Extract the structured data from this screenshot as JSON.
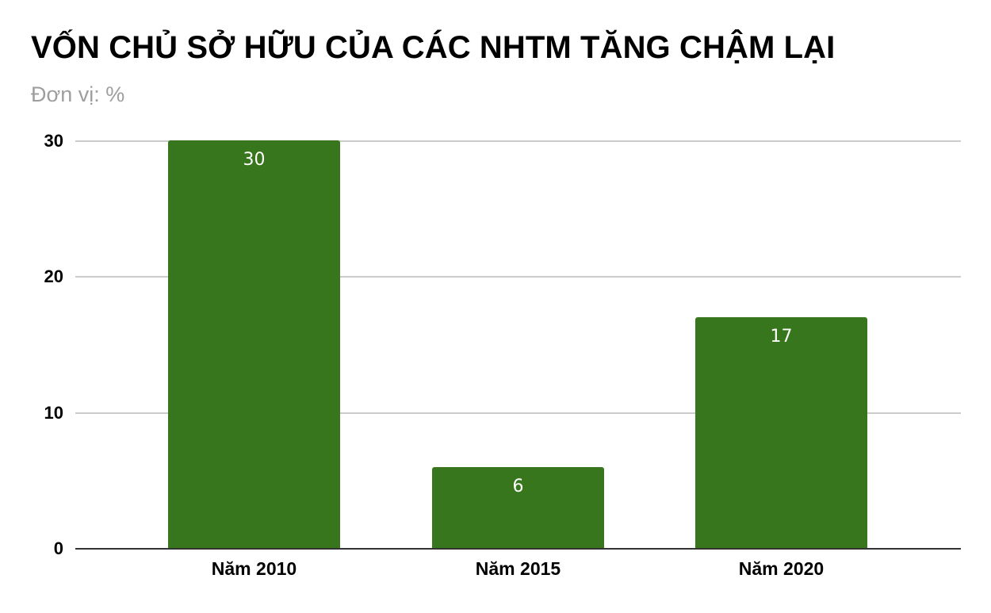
{
  "chart_data": {
    "type": "bar",
    "title": "VỐN CHỦ SỞ HỮU CỦA CÁC NHTM TĂNG CHẬM LẠI",
    "subtitle": "Đơn vị: %",
    "xlabel": "",
    "ylabel": "",
    "categories": [
      "Năm 2010",
      "Năm 2015",
      "Năm 2020"
    ],
    "values": [
      30,
      6,
      17
    ],
    "data_labels": [
      "30",
      "6",
      "17"
    ],
    "ylim": [
      0,
      30
    ],
    "yticks": [
      "0",
      "10",
      "20",
      "30"
    ],
    "grid": true,
    "legend": "none",
    "bar_color": "#38761d"
  }
}
